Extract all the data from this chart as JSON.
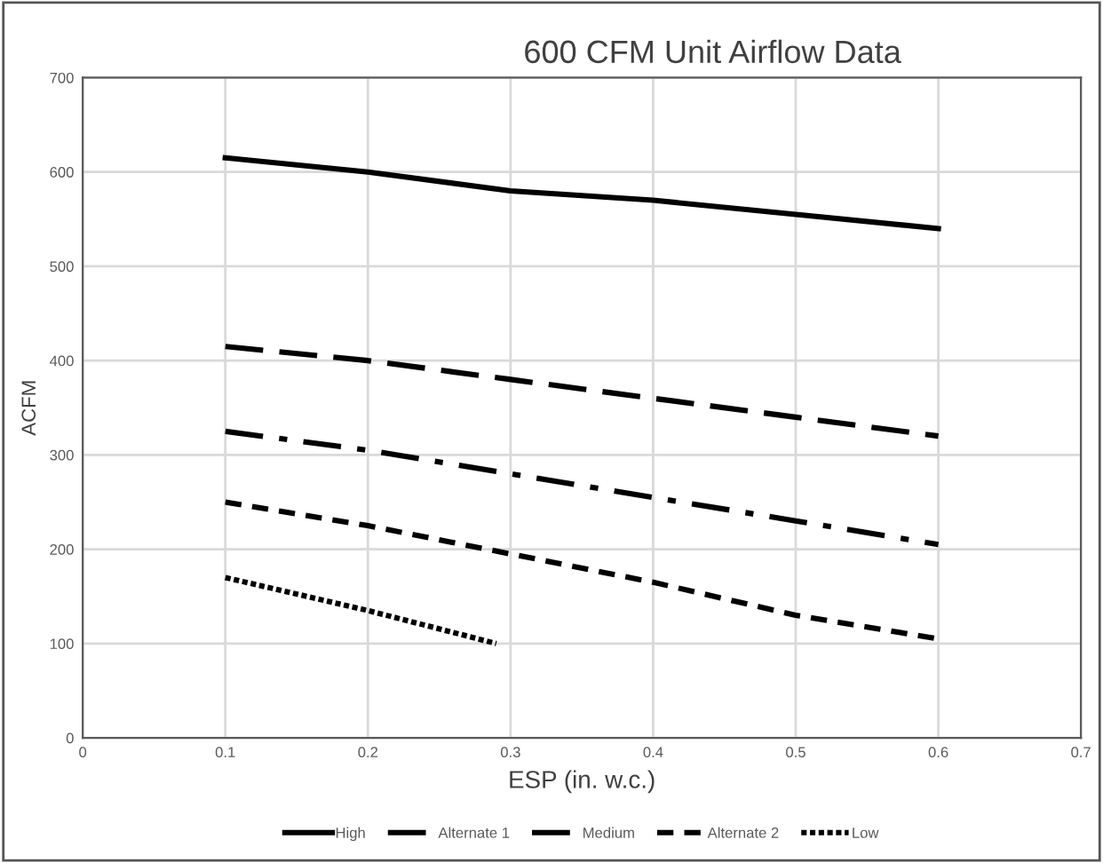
{
  "chart_data": {
    "type": "line",
    "title": "600 CFM Unit Airflow Data",
    "xlabel": "ESP (in. w.c.)",
    "ylabel": "ACFM",
    "x": [
      0.1,
      0.2,
      0.3,
      0.4,
      0.5,
      0.6
    ],
    "series": [
      {
        "name": "High",
        "color": "#000000",
        "line_style": "solid",
        "values": [
          615,
          600,
          580,
          570,
          555,
          540
        ]
      },
      {
        "name": "Alternate 1",
        "color": "#000000",
        "line_style": "longdash",
        "values": [
          415,
          400,
          380,
          360,
          340,
          320
        ]
      },
      {
        "name": "Medium",
        "color": "#000000",
        "line_style": "dashdot",
        "values": [
          325,
          305,
          280,
          255,
          230,
          205
        ]
      },
      {
        "name": "Alternate 2",
        "color": "#000000",
        "line_style": "dashed",
        "values": [
          250,
          225,
          195,
          165,
          130,
          105
        ]
      },
      {
        "name": "Low",
        "color": "#000000",
        "line_style": "dotted",
        "x": [
          0.1,
          0.2,
          0.29
        ],
        "values": [
          170,
          135,
          100
        ]
      }
    ],
    "xlim": [
      0,
      0.7
    ],
    "xticks": [
      0,
      0.1,
      0.2,
      0.3,
      0.4,
      0.5,
      0.6,
      0.7
    ],
    "ylim": [
      0,
      700
    ],
    "yticks": [
      0,
      100,
      200,
      300,
      400,
      500,
      600,
      700
    ],
    "grid": true,
    "legend": "bottom",
    "marker": "none"
  }
}
